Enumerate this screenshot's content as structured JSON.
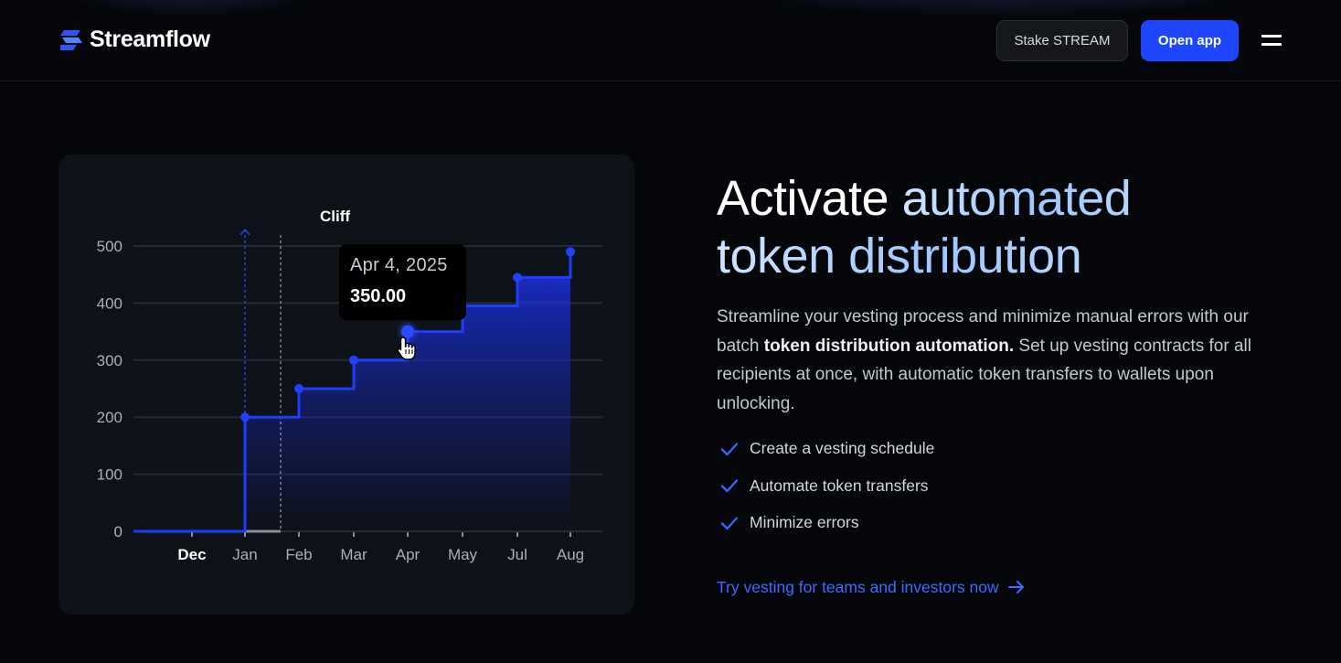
{
  "header": {
    "logo_text": "Streamflow",
    "stake_label": "Stake STREAM",
    "open_app_label": "Open app",
    "menu_icon": "hamburger-menu-icon"
  },
  "chart_card": {
    "tooltip": {
      "date": "Apr 4, 2025",
      "value": "350.00"
    }
  },
  "chart_data": {
    "type": "line",
    "style": "step-area",
    "annotation": "Cliff",
    "x": [
      "Dec",
      "Jan",
      "Feb",
      "Mar",
      "Apr",
      "May",
      "Jul",
      "Aug"
    ],
    "bold_tick": "Dec",
    "y_ticks": [
      0,
      100,
      200,
      300,
      400,
      500
    ],
    "ylim": [
      0,
      500
    ],
    "steps": [
      {
        "month": "Jan",
        "value": 200
      },
      {
        "month": "Feb",
        "value": 250
      },
      {
        "month": "Mar",
        "value": 300
      },
      {
        "month": "Apr",
        "value": 350
      },
      {
        "month": "May",
        "value": 395
      },
      {
        "month": "Jul",
        "value": 445
      },
      {
        "month": "Aug",
        "value": 490
      }
    ],
    "highlighted": {
      "month": "Apr",
      "value": 350
    },
    "colors": {
      "line": "#1f3dff",
      "fill": "#1a2fd6",
      "grid": "#252a34",
      "tick_label": "#aab0bc"
    }
  },
  "hero": {
    "headline_1_white": "Activate ",
    "headline_1_accent": "automated",
    "headline_2": "token distribution",
    "desc_1": "Streamline your vesting process and minimize manual errors with our batch ",
    "desc_bold": "token distribution automation.",
    "desc_2": " Set up vesting contracts for all recipients at once, with automatic token transfers to wallets upon unlocking.",
    "features": [
      "Create a vesting schedule",
      "Automate token transfers",
      "Minimize errors"
    ],
    "cta": "Try vesting for teams and investors now"
  },
  "colors": {
    "accent": "#1e46ff",
    "link": "#3f6cff",
    "background": "#05060a",
    "card": "#0d1118"
  }
}
